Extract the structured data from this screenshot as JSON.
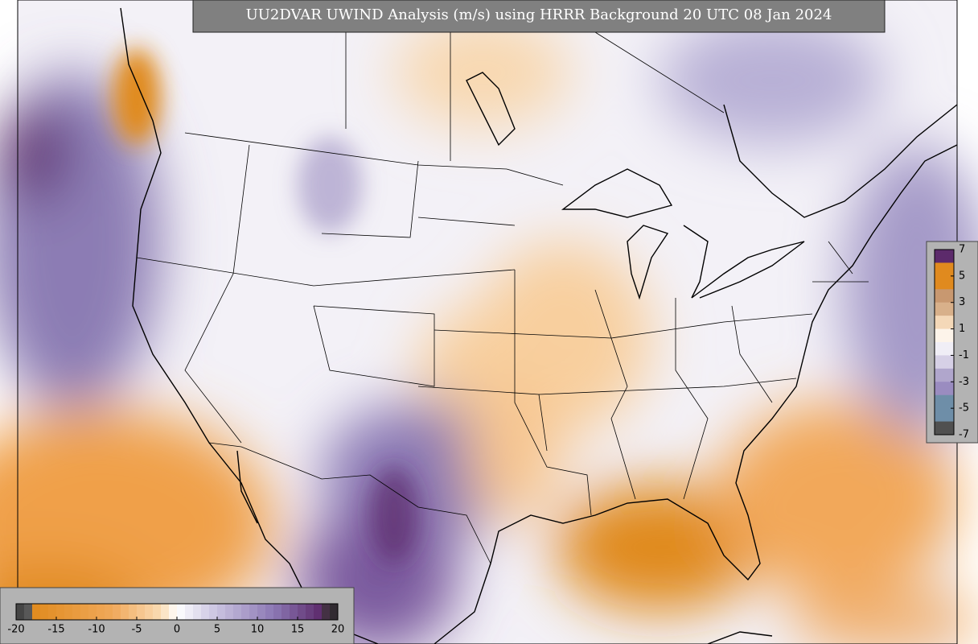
{
  "title": "UU2DVAR UWIND Analysis (m/s) using HRRR Background 20 UTC 08 Jan 2024",
  "colorbar_main": {
    "ticks": [
      -20,
      -15,
      -10,
      -5,
      0,
      5,
      10,
      15,
      20
    ]
  },
  "colorbar_inset": {
    "ticks": [
      7,
      5,
      3,
      1,
      -1,
      -3,
      -5,
      -7
    ]
  }
}
